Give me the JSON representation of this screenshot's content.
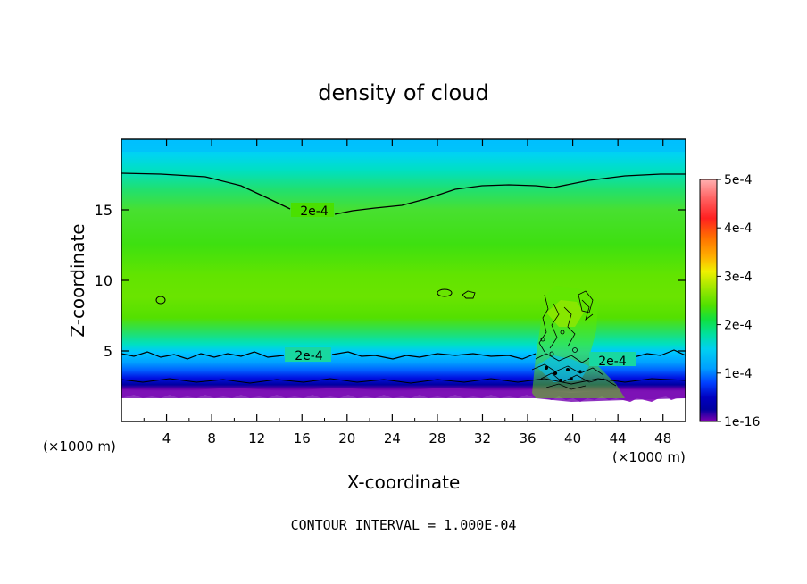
{
  "chart_data": {
    "type": "heatmap",
    "title": "density of cloud",
    "xlabel": "X-coordinate",
    "ylabel": "Z-coordinate",
    "x_unit_label_left": "(×1000 m)",
    "x_unit_label_right": "(×1000 m)",
    "xlim": [
      0,
      50
    ],
    "ylim": [
      0,
      20
    ],
    "x_ticks": [
      4,
      8,
      12,
      16,
      20,
      24,
      28,
      32,
      36,
      40,
      44,
      48
    ],
    "y_ticks": [
      5,
      10,
      15
    ],
    "colorbar": {
      "labels": [
        "5e-4",
        "4e-4",
        "3e-4",
        "2e-4",
        "1e-4",
        "1e-16"
      ],
      "values": [
        0.0005,
        0.0004,
        0.0003,
        0.0002,
        0.0001,
        1e-16
      ],
      "colors": [
        "#ff9999",
        "#ff3030",
        "#ff9a00",
        "#f0f000",
        "#a8e800",
        "#36e000",
        "#00e8a0",
        "#00c8ff",
        "#00a0ff",
        "#0040ff",
        "#0000a0",
        "#8000b0"
      ]
    },
    "contour_labels": [
      {
        "text": "2e-4",
        "x": 17.2,
        "z": 14.7
      },
      {
        "text": "2e-4",
        "x": 16.8,
        "z": 4.8
      },
      {
        "text": "2e-4",
        "x": 43.5,
        "z": 4.5
      }
    ],
    "footer": "CONTOUR INTERVAL = 1.000E-04"
  }
}
